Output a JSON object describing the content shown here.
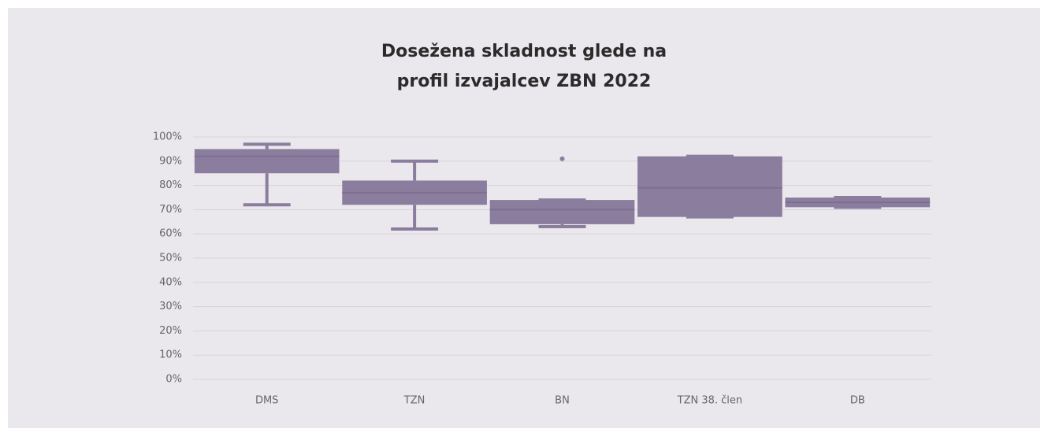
{
  "chart_data": {
    "type": "box",
    "title": [
      "Dosežena skladnost glede na",
      "profil izvajalcev ZBN 2022"
    ],
    "categories": [
      "DMS",
      "TZN",
      "BN",
      "TZN 38. člen",
      "DB"
    ],
    "color": "#8b7d9e",
    "boxes": [
      {
        "min": 72,
        "q1": 85,
        "median": 92,
        "q3": 95,
        "max": 97,
        "outliers": []
      },
      {
        "min": 62,
        "q1": 72,
        "median": 77,
        "q3": 82,
        "max": 90,
        "outliers": []
      },
      {
        "min": 63,
        "q1": 64,
        "median": 70,
        "q3": 74,
        "max": 74,
        "outliers": [
          91
        ]
      },
      {
        "min": 67,
        "q1": 67,
        "median": 79,
        "q3": 92,
        "max": 92,
        "outliers": []
      },
      {
        "min": 71,
        "q1": 71,
        "median": 73,
        "q3": 75,
        "max": 75,
        "outliers": []
      }
    ],
    "ylim": [
      0,
      100
    ],
    "yticks": [
      {
        "value": 0,
        "label": "0%"
      },
      {
        "value": 10,
        "label": "10%"
      },
      {
        "value": 20,
        "label": "20%"
      },
      {
        "value": 30,
        "label": "30%"
      },
      {
        "value": 40,
        "label": "40%"
      },
      {
        "value": 50,
        "label": "50%"
      },
      {
        "value": 60,
        "label": "60%"
      },
      {
        "value": 70,
        "label": "70%"
      },
      {
        "value": 80,
        "label": "80%"
      },
      {
        "value": 90,
        "label": "90%"
      },
      {
        "value": 100,
        "label": "100%"
      }
    ],
    "grid": true
  }
}
